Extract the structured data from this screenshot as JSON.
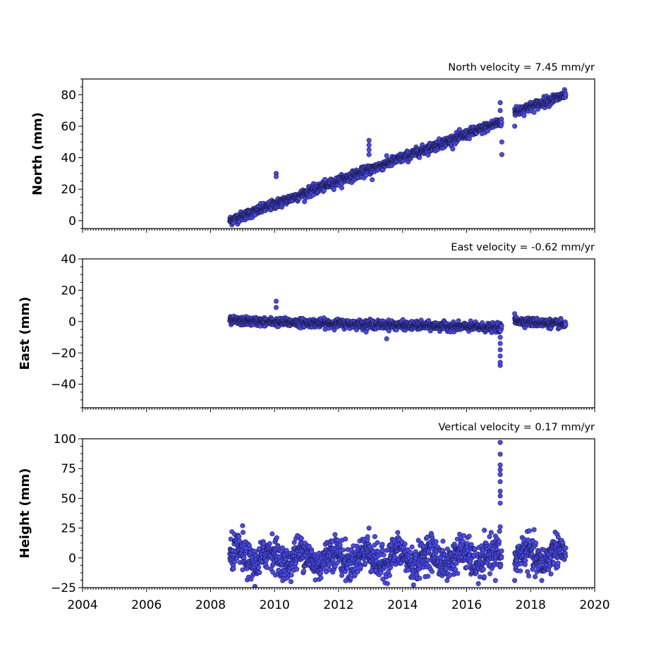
{
  "chart_data": [
    {
      "type": "scatter",
      "velocity_label": "North velocity = 7.45 mm/yr",
      "ylabel": "North (mm)",
      "xlim": [
        2004,
        2020
      ],
      "ylim": [
        -5,
        90
      ],
      "yticks": [
        0,
        20,
        40,
        60,
        80
      ],
      "marker_color": "#4a4af5",
      "trend": {
        "start": [
          2008.6,
          0
        ],
        "end": [
          2017.1,
          63
        ]
      },
      "trend2": {
        "start": [
          2017.5,
          69
        ],
        "end": [
          2019.1,
          80
        ]
      },
      "noise": 1.5,
      "outliers": [
        [
          2010.05,
          30
        ],
        [
          2010.05,
          28
        ],
        [
          2012.95,
          51
        ],
        [
          2012.95,
          48
        ],
        [
          2012.95,
          45
        ],
        [
          2012.95,
          42
        ],
        [
          2013.05,
          26
        ],
        [
          2017.05,
          75
        ],
        [
          2017.1,
          50
        ],
        [
          2017.1,
          42
        ],
        [
          2017.05,
          70
        ],
        [
          2017.5,
          60
        ]
      ],
      "series": [
        {
          "values": []
        }
      ]
    },
    {
      "type": "scatter",
      "velocity_label": "East velocity = -0.62 mm/yr",
      "ylabel": "East (mm)",
      "xlim": [
        2004,
        2020
      ],
      "ylim": [
        -55,
        40
      ],
      "yticks": [
        -40,
        -20,
        0,
        20,
        40
      ],
      "marker_color": "#4a4af5",
      "trend": {
        "start": [
          2008.6,
          0.5
        ],
        "end": [
          2017.1,
          -4
        ]
      },
      "trend2": {
        "start": [
          2017.5,
          0.5
        ],
        "end": [
          2019.1,
          -2
        ]
      },
      "noise": 1.3,
      "outliers": [
        [
          2010.05,
          13
        ],
        [
          2010.05,
          9
        ],
        [
          2013.5,
          -11
        ],
        [
          2017.05,
          -28
        ],
        [
          2017.05,
          -26
        ],
        [
          2017.05,
          -22
        ],
        [
          2017.05,
          -18
        ],
        [
          2017.05,
          -14
        ],
        [
          2017.05,
          -10
        ],
        [
          2017.05,
          -6
        ],
        [
          2017.5,
          5
        ]
      ],
      "series": [
        {
          "values": []
        }
      ]
    },
    {
      "type": "scatter",
      "velocity_label": "Vertical velocity = 0.17 mm/yr",
      "ylabel": "Height (mm)",
      "xlim": [
        2004,
        2020
      ],
      "ylim": [
        -25,
        100
      ],
      "yticks": [
        -25,
        0,
        25,
        50,
        75,
        100
      ],
      "xticks": [
        2004,
        2006,
        2008,
        2010,
        2012,
        2014,
        2016,
        2018,
        2020
      ],
      "marker_color": "#4a4af5",
      "trend": {
        "start": [
          2008.6,
          0
        ],
        "end": [
          2017.1,
          0
        ]
      },
      "trend2": {
        "start": [
          2017.5,
          0
        ],
        "end": [
          2019.1,
          2
        ]
      },
      "noise": 7,
      "outliers": [
        [
          2009.0,
          27
        ],
        [
          2012.95,
          25
        ],
        [
          2017.05,
          97
        ],
        [
          2017.05,
          87
        ],
        [
          2017.05,
          78
        ],
        [
          2017.05,
          74
        ],
        [
          2017.05,
          70
        ],
        [
          2017.05,
          64
        ],
        [
          2017.05,
          56
        ],
        [
          2017.05,
          52
        ],
        [
          2017.05,
          46
        ],
        [
          2017.05,
          26
        ],
        [
          2016.9,
          -19
        ],
        [
          2017.5,
          -19
        ]
      ],
      "series": [
        {
          "values": []
        }
      ]
    }
  ]
}
